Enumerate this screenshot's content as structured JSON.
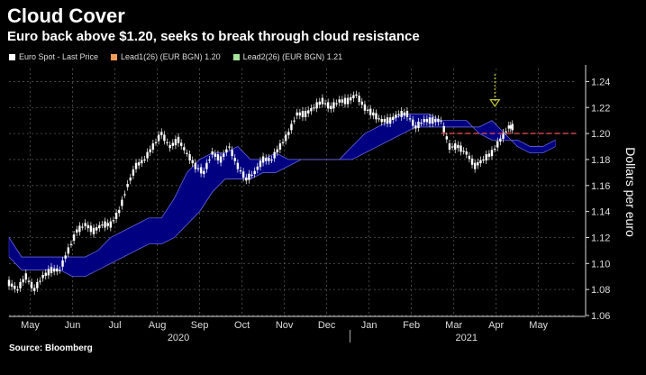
{
  "title": "Cloud Cover",
  "subtitle": "Euro back above $1.20, seeks to break through cloud resistance",
  "legend": [
    {
      "label": "Euro Spot - Last Price",
      "color": "#ffffff"
    },
    {
      "label": "Lead1(26) (EUR BGN) 1.20",
      "color": "#f29b56"
    },
    {
      "label": "Lead2(26) (EUR BGN) 1.21",
      "color": "#a7e39a"
    }
  ],
  "source": "Source: Bloomberg",
  "colors": {
    "cloud": "#000080",
    "price": "#ffffff",
    "resistance": "#e04848",
    "arrow": "#c8c832",
    "grid": "#555555"
  },
  "chart_data": {
    "type": "line",
    "title": "Cloud Cover",
    "ylabel": "Dollars per euro",
    "ylim": [
      1.06,
      1.25
    ],
    "yticks": [
      1.06,
      1.08,
      1.1,
      1.12,
      1.14,
      1.16,
      1.18,
      1.2,
      1.22,
      1.24
    ],
    "xlim": [
      4.5,
      17.9
    ],
    "months": [
      "May",
      "Jun",
      "Jul",
      "Aug",
      "Sep",
      "Oct",
      "Nov",
      "Dec",
      "Jan",
      "Feb",
      "Mar",
      "Apr",
      "May"
    ],
    "month_positions": [
      5,
      6,
      7,
      8,
      9,
      10,
      11,
      12,
      13,
      14,
      15,
      16,
      17
    ],
    "years": [
      {
        "label": "2020",
        "at": 8.5
      },
      {
        "label": "2021",
        "at": 15.3
      }
    ],
    "year_divider_at": 12.55,
    "resistance_level": 1.2,
    "resistance_start": 14.7,
    "arrow_at": 15.97,
    "series": [
      {
        "name": "Euro Spot - Last Price",
        "x": [
          4.5,
          4.7,
          4.9,
          5.1,
          5.3,
          5.5,
          5.7,
          5.9,
          6.1,
          6.3,
          6.5,
          6.7,
          6.9,
          7.1,
          7.3,
          7.5,
          7.7,
          7.9,
          8.1,
          8.3,
          8.5,
          8.7,
          8.9,
          9.1,
          9.3,
          9.5,
          9.7,
          9.9,
          10.1,
          10.3,
          10.5,
          10.7,
          10.9,
          11.1,
          11.3,
          11.5,
          11.7,
          11.9,
          12.1,
          12.3,
          12.5,
          12.7,
          12.9,
          13.1,
          13.3,
          13.5,
          13.7,
          13.9,
          14.1,
          14.3,
          14.5,
          14.7,
          14.9,
          15.1,
          15.3,
          15.5,
          15.7,
          15.9,
          16.1,
          16.3
        ],
        "values": [
          1.085,
          1.08,
          1.09,
          1.08,
          1.09,
          1.095,
          1.095,
          1.11,
          1.125,
          1.13,
          1.125,
          1.13,
          1.13,
          1.14,
          1.16,
          1.175,
          1.18,
          1.19,
          1.2,
          1.19,
          1.195,
          1.185,
          1.175,
          1.17,
          1.185,
          1.18,
          1.19,
          1.175,
          1.165,
          1.17,
          1.18,
          1.18,
          1.19,
          1.2,
          1.215,
          1.215,
          1.22,
          1.225,
          1.22,
          1.225,
          1.225,
          1.23,
          1.22,
          1.215,
          1.21,
          1.21,
          1.215,
          1.215,
          1.205,
          1.21,
          1.21,
          1.21,
          1.19,
          1.19,
          1.185,
          1.175,
          1.18,
          1.185,
          1.195,
          1.205
        ]
      },
      {
        "name": "Lead1(26) (EUR BGN) 1.20",
        "x": [
          4.5,
          4.8,
          5.1,
          5.4,
          5.7,
          6.0,
          6.3,
          6.6,
          6.9,
          7.2,
          7.5,
          7.8,
          8.1,
          8.4,
          8.7,
          9.0,
          9.3,
          9.6,
          9.9,
          10.2,
          10.5,
          10.8,
          11.1,
          11.4,
          11.7,
          12.0,
          12.3,
          12.6,
          12.9,
          13.2,
          13.5,
          13.8,
          14.1,
          14.4,
          14.7,
          15.0,
          15.3,
          15.6,
          15.9,
          16.2,
          16.5,
          16.8,
          17.1,
          17.4
        ],
        "values": [
          1.12,
          1.105,
          1.105,
          1.105,
          1.105,
          1.105,
          1.105,
          1.11,
          1.12,
          1.125,
          1.13,
          1.135,
          1.135,
          1.15,
          1.17,
          1.18,
          1.185,
          1.185,
          1.19,
          1.18,
          1.18,
          1.185,
          1.18,
          1.18,
          1.18,
          1.18,
          1.18,
          1.19,
          1.2,
          1.205,
          1.21,
          1.215,
          1.215,
          1.215,
          1.21,
          1.21,
          1.21,
          1.2,
          1.195,
          1.195,
          1.195,
          1.19,
          1.19,
          1.195
        ]
      },
      {
        "name": "Lead2(26) (EUR BGN) 1.21",
        "x": [
          4.5,
          4.8,
          5.1,
          5.4,
          5.7,
          6.0,
          6.3,
          6.6,
          6.9,
          7.2,
          7.5,
          7.8,
          8.1,
          8.4,
          8.7,
          9.0,
          9.3,
          9.6,
          9.9,
          10.2,
          10.5,
          10.8,
          11.1,
          11.4,
          11.7,
          12.0,
          12.3,
          12.6,
          12.9,
          13.2,
          13.5,
          13.8,
          14.1,
          14.4,
          14.7,
          15.0,
          15.3,
          15.6,
          15.9,
          16.2,
          16.5,
          16.8,
          17.1,
          17.4
        ],
        "values": [
          1.105,
          1.095,
          1.095,
          1.095,
          1.095,
          1.09,
          1.09,
          1.095,
          1.1,
          1.105,
          1.11,
          1.115,
          1.115,
          1.12,
          1.13,
          1.14,
          1.155,
          1.165,
          1.165,
          1.165,
          1.17,
          1.17,
          1.175,
          1.18,
          1.18,
          1.18,
          1.18,
          1.18,
          1.185,
          1.19,
          1.195,
          1.2,
          1.205,
          1.205,
          1.205,
          1.205,
          1.205,
          1.205,
          1.21,
          1.2,
          1.19,
          1.185,
          1.185,
          1.19
        ]
      }
    ]
  }
}
